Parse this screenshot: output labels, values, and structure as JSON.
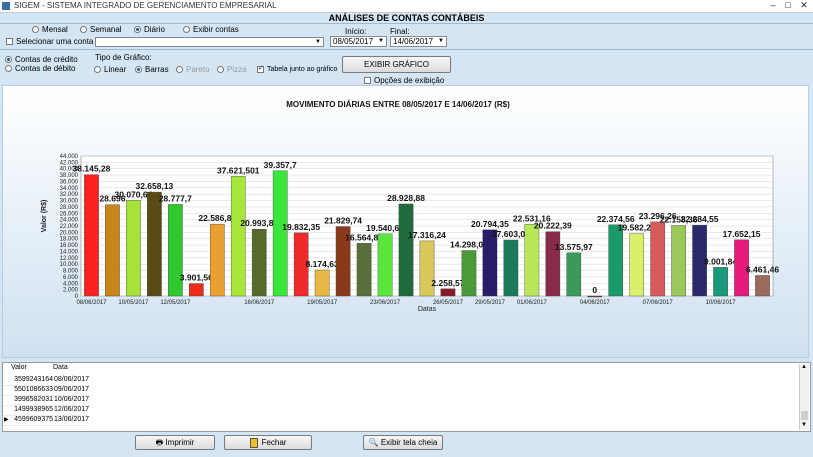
{
  "window": {
    "title": "SIGEM - SISTEMA INTEGRADO DE GERENCIAMENTO EMPRESARIAL",
    "minimize": "–",
    "maximize": "□",
    "close": "✕"
  },
  "header": {
    "title": "ANÁLISES DE CONTAS CONTÁBEIS"
  },
  "period": {
    "options": [
      "Mensal",
      "Semanal",
      "Diário",
      "Exibir contas"
    ],
    "selected": "Diário"
  },
  "account": {
    "checkbox_label": "Selecionar uma conta",
    "checked": false,
    "value": ""
  },
  "dates": {
    "start_label": "Início:",
    "start_value": "08/05/2017",
    "end_label": "Final:",
    "end_value": "14/06/2017"
  },
  "account_type": {
    "options": [
      "Contas de crédito",
      "Contas de débito"
    ],
    "selected": "Contas de crédito"
  },
  "chart_type": {
    "label": "Tipo de Gráfico:",
    "options": [
      {
        "label": "Linear",
        "enabled": true
      },
      {
        "label": "Barras",
        "enabled": true
      },
      {
        "label": "Pareto",
        "enabled": false
      },
      {
        "label": "Pizza",
        "enabled": false
      }
    ],
    "selected": "Barras",
    "table_checkbox_label": "Tabela junto ao gráfico",
    "table_checked": true
  },
  "buttons": {
    "show_chart": "EXIBIR GRÁFICO",
    "print": "Imprimir",
    "close": "Fechar",
    "fullscreen": "Exibir tela cheia"
  },
  "display_options": {
    "label": "Opções de exibição",
    "checked": false
  },
  "chart_data": {
    "type": "bar",
    "title": "MOVIMENTO DIÁRIAS ENTRE 08/05/2017 E 14/06/2017 (R$)",
    "xlabel": "Datas",
    "ylabel": "Valor (R$)",
    "ylim": [
      0,
      44000
    ],
    "ytick_step": 2000,
    "ytick_labels": [
      "0",
      "2.000",
      "4.000",
      "6.000",
      "8.000",
      "10.000",
      "12.000",
      "14.000",
      "16.000",
      "18.000",
      "20.000",
      "22.000",
      "24.000",
      "26.000",
      "28.000",
      "30.000",
      "32.000",
      "34.000",
      "36.000",
      "38.000",
      "40.000",
      "42.000",
      "44.000"
    ],
    "grid": true,
    "values": [
      38145.28,
      28696,
      30070.64,
      32658.13,
      28777.7,
      3901.56,
      22586.84,
      37621.501,
      20993.88,
      39357.7,
      19832.35,
      8174.63,
      21829.74,
      16564.86,
      19540.62,
      28928.88,
      17316.24,
      2258.57,
      14298.02,
      20794.35,
      17603.04,
      22531.16,
      20222.39,
      13575.97,
      0,
      22374.56,
      19582.26,
      23296.26,
      22158.36,
      22284.55,
      9001.84,
      17652.15,
      6461.46
    ],
    "value_labels": [
      "38.145,28",
      "28.696",
      "30.070,64",
      "32.658,13",
      "28.777,7",
      "3.901,56",
      "22.586,84",
      "37.621,501",
      "20.993,88",
      "39.357,7",
      "19.832,35",
      "8.174,63",
      "21.829,74",
      "16.564,86",
      "19.540,62",
      "28.928,88",
      "17.316,24",
      "2.258,57",
      "14.298,02",
      "20.794,35",
      "17.603,04",
      "22.531,16",
      "20.222,39",
      "13.575,97",
      "0",
      "22.374,56",
      "19.582,26",
      "23.296,26",
      "22.158,36",
      "22.284,55",
      "9.001,84",
      "17.652,15",
      "6.461,46"
    ],
    "colors": [
      "#ff2020",
      "#c8861a",
      "#a6e23a",
      "#5a4a14",
      "#2fc82f",
      "#ee2a18",
      "#e8a030",
      "#a8e63a",
      "#566b2a",
      "#3ae63a",
      "#ee2a2a",
      "#e8b845",
      "#8a3a1a",
      "#5a6e3a",
      "#5ae63a",
      "#1f6b3a",
      "#d8c85a",
      "#8a1a2a",
      "#4a9a3a",
      "#2a1a6a",
      "#1a7a5a",
      "#b8e85a",
      "#8a2a4a",
      "#3a9a5a",
      "#9a2a2a",
      "#1a9a6a",
      "#d8f06a",
      "#d85a5a",
      "#9ac85a",
      "#2a2a6a",
      "#1a9a7a",
      "#e81a7a",
      "#9a6a5a"
    ],
    "x_tick_labels": [
      {
        "index": 0,
        "label": "08/06/2017"
      },
      {
        "index": 2,
        "label": "10/05/2017"
      },
      {
        "index": 4,
        "label": "12/05/2017"
      },
      {
        "index": 8,
        "label": "16/06/2017"
      },
      {
        "index": 11,
        "label": "19/05/2017"
      },
      {
        "index": 14,
        "label": "23/06/2017"
      },
      {
        "index": 17,
        "label": "26/05/2017"
      },
      {
        "index": 19,
        "label": "29/05/2017"
      },
      {
        "index": 21,
        "label": "01/06/2017"
      },
      {
        "index": 24,
        "label": "04/06/2017"
      },
      {
        "index": 27,
        "label": "07/06/2017"
      },
      {
        "index": 30,
        "label": "10/06/2017"
      }
    ]
  },
  "table": {
    "headers": [
      "Valor",
      "Data"
    ],
    "rows": [
      {
        "valor": "3599243164",
        "data": "08/06/2017"
      },
      {
        "valor": "5501086633",
        "data": "09/06/2017"
      },
      {
        "valor": "3996582031",
        "data": "10/06/2017"
      },
      {
        "valor": "1499938965",
        "data": "12/06/2017"
      },
      {
        "valor": "4599609375",
        "data": "13/06/2017"
      }
    ],
    "current_row_marker": "▶"
  }
}
